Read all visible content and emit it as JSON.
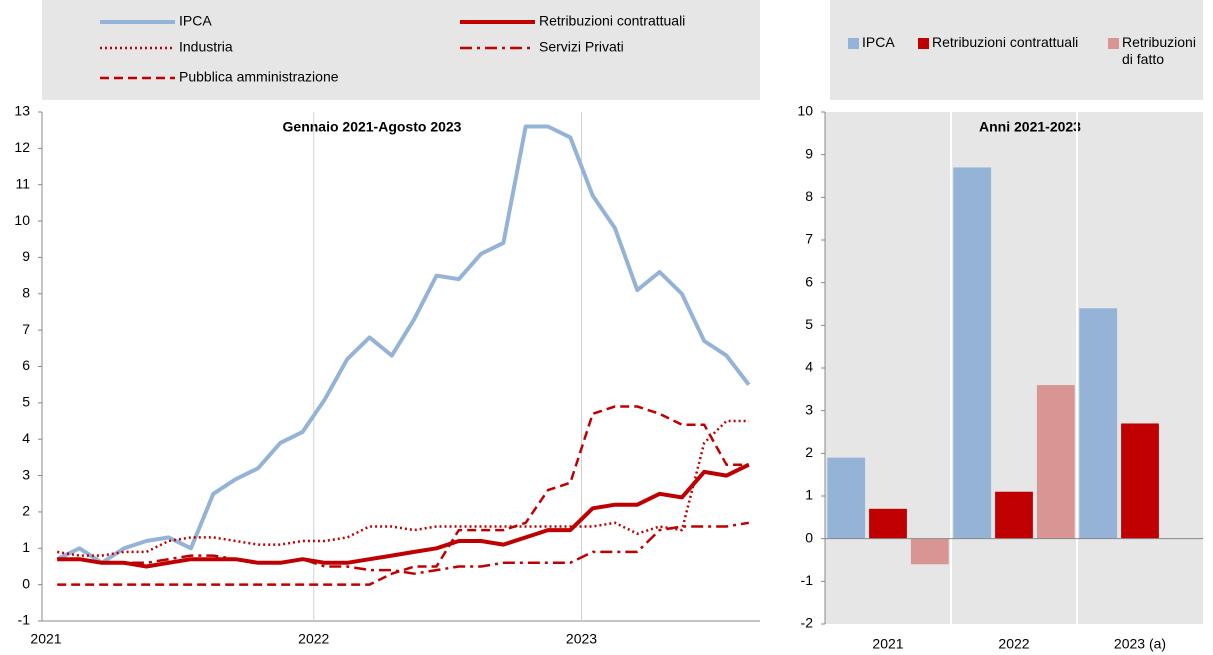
{
  "chart_data": [
    {
      "type": "line",
      "annotation": "Gennaio 2021-Agosto 2023",
      "categories": [
        "2021",
        null,
        null,
        null,
        null,
        null,
        null,
        null,
        null,
        null,
        null,
        null,
        "2022",
        null,
        null,
        null,
        null,
        null,
        null,
        null,
        null,
        null,
        null,
        null,
        "2023",
        null,
        null,
        null,
        null,
        null,
        null,
        null
      ],
      "series": [
        {
          "name": "IPCA",
          "color": "#95b3d7",
          "dash": "solid",
          "values": [
            0.7,
            1.0,
            0.6,
            1.0,
            1.2,
            1.3,
            1.0,
            2.5,
            2.9,
            3.2,
            3.9,
            4.2,
            5.1,
            6.2,
            6.8,
            6.3,
            7.3,
            8.5,
            8.4,
            9.1,
            9.4,
            12.6,
            12.6,
            12.3,
            10.7,
            9.8,
            8.1,
            8.6,
            8.0,
            6.7,
            6.3,
            5.5
          ]
        },
        {
          "name": "Retribuzioni contrattuali",
          "color": "#c00000",
          "dash": "solid",
          "values": [
            0.7,
            0.7,
            0.6,
            0.6,
            0.5,
            0.6,
            0.7,
            0.7,
            0.7,
            0.6,
            0.6,
            0.7,
            0.6,
            0.6,
            0.7,
            0.8,
            0.9,
            1.0,
            1.2,
            1.2,
            1.1,
            1.3,
            1.5,
            1.5,
            2.1,
            2.2,
            2.2,
            2.5,
            2.4,
            3.1,
            3.0,
            3.3
          ]
        },
        {
          "name": "Industria",
          "color": "#c00000",
          "dash": "dotted",
          "values": [
            0.9,
            0.8,
            0.8,
            0.9,
            0.9,
            1.2,
            1.3,
            1.3,
            1.2,
            1.1,
            1.1,
            1.2,
            1.2,
            1.3,
            1.6,
            1.6,
            1.5,
            1.6,
            1.6,
            1.6,
            1.6,
            1.6,
            1.6,
            1.6,
            1.6,
            1.7,
            1.4,
            1.6,
            1.5,
            3.9,
            4.5,
            4.5
          ]
        },
        {
          "name": "Servizi Privati",
          "color": "#c00000",
          "dash": "dashdot",
          "values": [
            0.7,
            0.7,
            0.6,
            0.6,
            0.6,
            0.7,
            0.8,
            0.8,
            0.7,
            0.6,
            0.6,
            0.7,
            0.5,
            0.5,
            0.4,
            0.4,
            0.3,
            0.4,
            0.5,
            0.5,
            0.6,
            0.6,
            0.6,
            0.6,
            0.9,
            0.9,
            0.9,
            1.5,
            1.6,
            1.6,
            1.6,
            1.7
          ]
        },
        {
          "name": "Pubblica amministrazione",
          "color": "#c00000",
          "dash": "dashed",
          "values": [
            0,
            0,
            0,
            0,
            0,
            0,
            0,
            0,
            0,
            0,
            0,
            0,
            0,
            0,
            0,
            0.3,
            0.5,
            0.5,
            1.5,
            1.5,
            1.5,
            1.7,
            2.6,
            2.8,
            4.7,
            4.9,
            4.9,
            4.7,
            4.4,
            4.4,
            3.3,
            3.3
          ]
        }
      ],
      "ylim": [
        -1,
        13
      ],
      "yticks": [
        -1,
        0,
        1,
        2,
        3,
        4,
        5,
        6,
        7,
        8,
        9,
        10,
        11,
        12,
        13
      ],
      "grid": true
    },
    {
      "type": "bar",
      "annotation": "Anni 2021-2023",
      "categories": [
        "2021",
        "2022",
        "2023 (a)"
      ],
      "series": [
        {
          "name": "IPCA",
          "color": "#95b3d7",
          "values": [
            1.9,
            8.7,
            5.4
          ]
        },
        {
          "name": "Retribuzioni contrattuali",
          "color": "#c00000",
          "values": [
            0.7,
            1.1,
            2.7
          ]
        },
        {
          "name": "Retribuzioni di fatto",
          "color": "#d99594",
          "values": [
            -0.6,
            3.6,
            null
          ]
        }
      ],
      "ylim": [
        -2,
        10
      ],
      "yticks": [
        -2,
        -1,
        0,
        1,
        2,
        3,
        4,
        5,
        6,
        7,
        8,
        9,
        10
      ],
      "grid": true
    }
  ]
}
